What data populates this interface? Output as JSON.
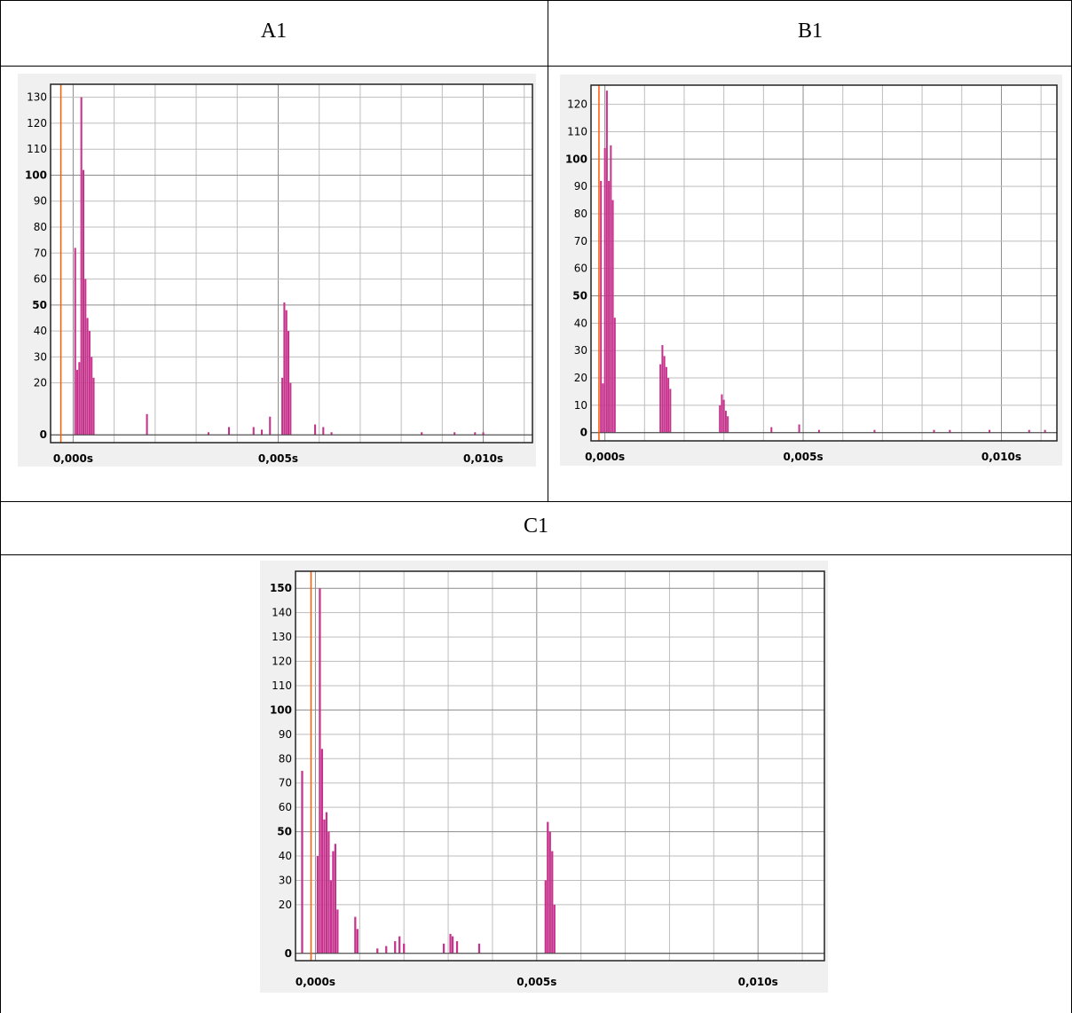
{
  "table": {
    "headers": [
      "A1",
      "B1",
      "C1"
    ]
  },
  "colors": {
    "bars": "#c6338d",
    "marker": "#ff5a00",
    "grid": "#bdbdbd",
    "frame": "#222222",
    "panel_bg": "#f0f0f0",
    "plot_bg": "#ffffff"
  },
  "chart_data": [
    {
      "panel": "A1",
      "type": "bar",
      "title": "",
      "xlabel": "",
      "ylabel": "",
      "x_unit": "s",
      "xlim": [
        -0.00055,
        0.0112
      ],
      "ylim": [
        -3,
        135
      ],
      "yticks": [
        0,
        20,
        30,
        40,
        50,
        60,
        70,
        80,
        90,
        100,
        110,
        120,
        130
      ],
      "yticks_bold": [
        0,
        50,
        100
      ],
      "ytick_labels": [
        "0",
        "20",
        "30",
        "40",
        "50",
        "60",
        "70",
        "80",
        "90",
        "100",
        "110",
        "120",
        "130"
      ],
      "xticks": [
        0.0,
        0.005,
        0.01
      ],
      "xtick_labels": [
        "0,000s",
        "0,005s",
        "0,010s"
      ],
      "grid": true,
      "marker_x": -0.0003,
      "bars": [
        [
          5e-05,
          72
        ],
        [
          0.0001,
          25
        ],
        [
          0.00015,
          28
        ],
        [
          0.0002,
          130
        ],
        [
          0.00025,
          102
        ],
        [
          0.0003,
          60
        ],
        [
          0.00035,
          45
        ],
        [
          0.0004,
          40
        ],
        [
          0.00045,
          30
        ],
        [
          0.0005,
          22
        ],
        [
          0.0018,
          8
        ],
        [
          0.0033,
          1
        ],
        [
          0.0038,
          3
        ],
        [
          0.0044,
          3
        ],
        [
          0.0046,
          2
        ],
        [
          0.0048,
          7
        ],
        [
          0.0051,
          22
        ],
        [
          0.00515,
          51
        ],
        [
          0.0052,
          48
        ],
        [
          0.00525,
          40
        ],
        [
          0.0053,
          20
        ],
        [
          0.0059,
          4
        ],
        [
          0.0061,
          3
        ],
        [
          0.0063,
          1
        ],
        [
          0.0085,
          1
        ],
        [
          0.0093,
          1
        ],
        [
          0.0098,
          1
        ],
        [
          0.01,
          1
        ]
      ]
    },
    {
      "panel": "B1",
      "type": "bar",
      "title": "",
      "xlabel": "",
      "ylabel": "",
      "x_unit": "s",
      "xlim": [
        -0.00035,
        0.0114
      ],
      "ylim": [
        -3,
        127
      ],
      "yticks": [
        0,
        10,
        20,
        30,
        40,
        50,
        60,
        70,
        80,
        90,
        100,
        110,
        120
      ],
      "yticks_bold": [
        0,
        50,
        100
      ],
      "ytick_labels": [
        "0",
        "10",
        "20",
        "30",
        "40",
        "50",
        "60",
        "70",
        "80",
        "90",
        "100",
        "110",
        "120"
      ],
      "xticks": [
        0.0,
        0.005,
        0.01
      ],
      "xtick_labels": [
        "0,000s",
        "0,005s",
        "0,010s"
      ],
      "grid": true,
      "marker_x": -0.00015,
      "bars": [
        [
          -0.0001,
          92
        ],
        [
          -5e-05,
          18
        ],
        [
          0.0,
          104
        ],
        [
          5e-05,
          125
        ],
        [
          0.0001,
          92
        ],
        [
          0.00015,
          105
        ],
        [
          0.0002,
          85
        ],
        [
          0.00025,
          42
        ],
        [
          0.0014,
          25
        ],
        [
          0.00145,
          32
        ],
        [
          0.0015,
          28
        ],
        [
          0.00155,
          24
        ],
        [
          0.0016,
          20
        ],
        [
          0.00165,
          16
        ],
        [
          0.0029,
          10
        ],
        [
          0.00295,
          14
        ],
        [
          0.003,
          12
        ],
        [
          0.00305,
          8
        ],
        [
          0.0031,
          6
        ],
        [
          0.0042,
          2
        ],
        [
          0.0049,
          3
        ],
        [
          0.0054,
          1
        ],
        [
          0.0068,
          1
        ],
        [
          0.0083,
          1
        ],
        [
          0.0087,
          1
        ],
        [
          0.0097,
          1
        ],
        [
          0.0107,
          1
        ],
        [
          0.0111,
          1
        ]
      ]
    },
    {
      "panel": "C1",
      "type": "bar",
      "title": "",
      "xlabel": "",
      "ylabel": "",
      "x_unit": "s",
      "xlim": [
        -0.00045,
        0.0115
      ],
      "ylim": [
        -3,
        157
      ],
      "yticks": [
        0,
        20,
        30,
        40,
        50,
        60,
        70,
        80,
        90,
        100,
        110,
        120,
        130,
        140,
        150
      ],
      "yticks_bold": [
        0,
        50,
        100,
        150
      ],
      "ytick_labels": [
        "0",
        "20",
        "30",
        "40",
        "50",
        "60",
        "70",
        "80",
        "90",
        "100",
        "110",
        "120",
        "130",
        "140",
        "150"
      ],
      "xticks": [
        0.0,
        0.005,
        0.01
      ],
      "xtick_labels": [
        "0,000s",
        "0,005s",
        "0,010s"
      ],
      "grid": true,
      "marker_x": -0.0001,
      "bars": [
        [
          -0.0003,
          75
        ],
        [
          5e-05,
          40
        ],
        [
          0.0001,
          150
        ],
        [
          0.00015,
          84
        ],
        [
          0.0002,
          55
        ],
        [
          0.00025,
          58
        ],
        [
          0.0003,
          50
        ],
        [
          0.00035,
          30
        ],
        [
          0.0004,
          42
        ],
        [
          0.00045,
          45
        ],
        [
          0.0005,
          18
        ],
        [
          0.0009,
          15
        ],
        [
          0.00095,
          10
        ],
        [
          0.0014,
          2
        ],
        [
          0.0016,
          3
        ],
        [
          0.0018,
          5
        ],
        [
          0.0019,
          7
        ],
        [
          0.002,
          4
        ],
        [
          0.0029,
          4
        ],
        [
          0.00305,
          8
        ],
        [
          0.0031,
          7
        ],
        [
          0.0032,
          5
        ],
        [
          0.0037,
          4
        ],
        [
          0.0052,
          30
        ],
        [
          0.00525,
          54
        ],
        [
          0.0053,
          50
        ],
        [
          0.00535,
          42
        ],
        [
          0.0054,
          20
        ]
      ]
    }
  ]
}
